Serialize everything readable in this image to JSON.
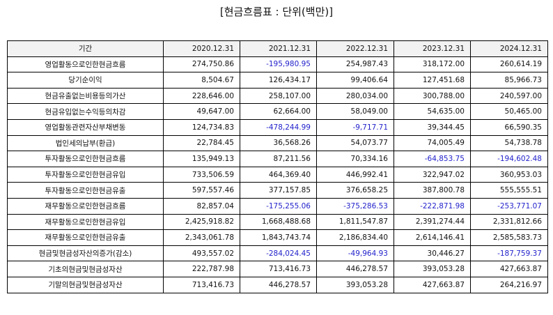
{
  "title": "[현금흐름표 : 단위(백만)]",
  "colors": {
    "negative": "#2222cc",
    "header_bg": "#f2f2f2",
    "border": "#000000"
  },
  "table": {
    "headers": [
      "기간",
      "2020.12.31",
      "2021.12.31",
      "2022.12.31",
      "2023.12.31",
      "2024.12.31"
    ],
    "rows": [
      {
        "label": "영업활동으로인한현금흐름",
        "values": [
          "274,750.86",
          "-195,980.95",
          "254,987.43",
          "318,172.00",
          "260,614.19"
        ]
      },
      {
        "label": "당기순이익",
        "values": [
          "8,504.67",
          "126,434.17",
          "99,406.64",
          "127,451.68",
          "85,966.73"
        ]
      },
      {
        "label": "현금유출없는비용등의가산",
        "values": [
          "228,646.00",
          "258,107.00",
          "280,034.00",
          "300,788.00",
          "240,597.00"
        ]
      },
      {
        "label": "현금유입없는수익등의차감",
        "values": [
          "49,647.00",
          "62,664.00",
          "58,049.00",
          "54,635.00",
          "50,465.00"
        ]
      },
      {
        "label": "영업활동관련자산부채변동",
        "values": [
          "124,734.83",
          "-478,244.99",
          "-9,717.71",
          "39,344.45",
          "66,590.35"
        ]
      },
      {
        "label": "법인세의납부(환급)",
        "values": [
          "22,784.45",
          "36,568.26",
          "54,073.77",
          "74,005.49",
          "54,738.78"
        ]
      },
      {
        "label": "투자활동으로인한현금흐름",
        "values": [
          "135,949.13",
          "87,211.56",
          "70,334.16",
          "-64,853.75",
          "-194,602.48"
        ]
      },
      {
        "label": "투자활동으로인한현금유입",
        "values": [
          "733,506.59",
          "464,369.40",
          "446,992.41",
          "322,947.02",
          "360,953.03"
        ]
      },
      {
        "label": "투자활동으로인한현금유출",
        "values": [
          "597,557.46",
          "377,157.85",
          "376,658.25",
          "387,800.78",
          "555,555.51"
        ]
      },
      {
        "label": "재무활동으로인한현금흐름",
        "values": [
          "82,857.04",
          "-175,255.06",
          "-375,286.53",
          "-222,871.98",
          "-253,771.07"
        ]
      },
      {
        "label": "재무활동으로인한현금유입",
        "values": [
          "2,425,918.82",
          "1,668,488.68",
          "1,811,547.87",
          "2,391,274.44",
          "2,331,812.66"
        ]
      },
      {
        "label": "재무활동으로인한현금유출",
        "values": [
          "2,343,061.78",
          "1,843,743.74",
          "2,186,834.40",
          "2,614,146.41",
          "2,585,583.73"
        ]
      },
      {
        "label": "현금및현금성자산의증가(감소)",
        "values": [
          "493,557.02",
          "-284,024.45",
          "-49,964.93",
          "30,446.27",
          "-187,759.37"
        ]
      },
      {
        "label": "기초의현금및현금성자산",
        "values": [
          "222,787.98",
          "713,416.73",
          "446,278.57",
          "393,053.28",
          "427,663.87"
        ]
      },
      {
        "label": "기말의현금및현금성자산",
        "values": [
          "713,416.73",
          "446,278.57",
          "393,053.28",
          "427,663.87",
          "264,216.97"
        ]
      }
    ]
  }
}
